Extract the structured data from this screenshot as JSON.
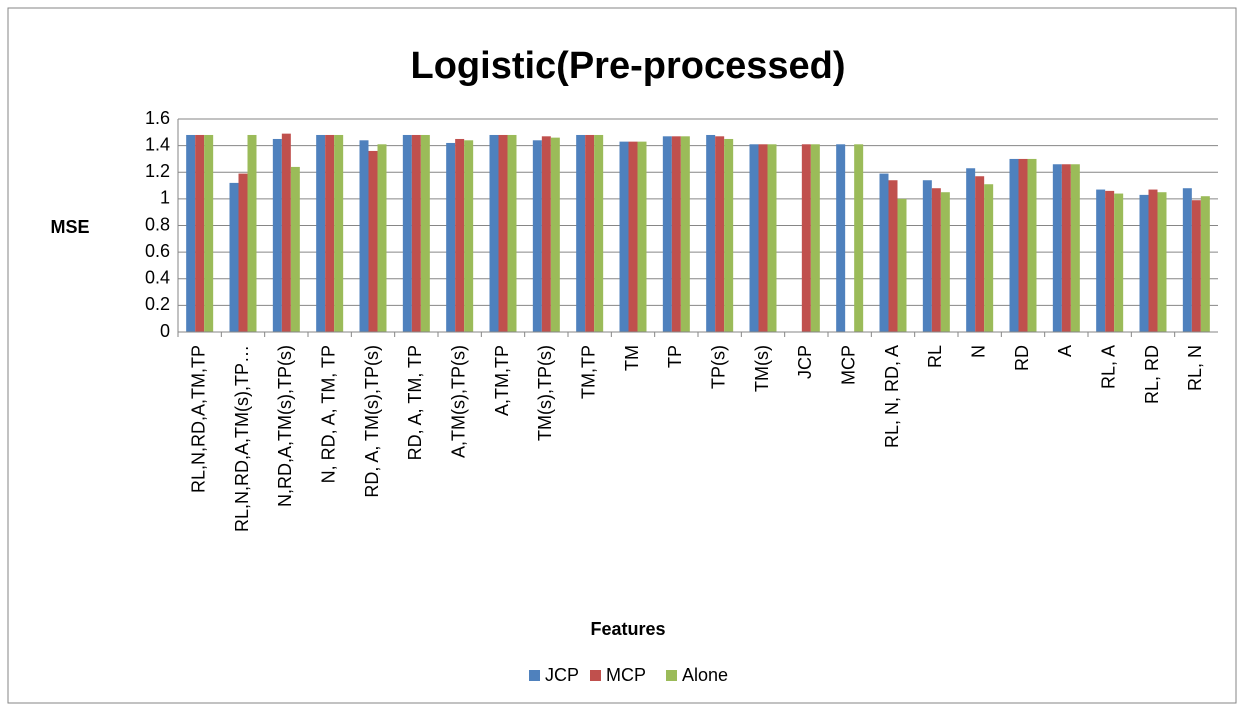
{
  "chart_data": {
    "type": "bar",
    "title": "Logistic(Pre-processed)",
    "x_label": "Features",
    "y_label": "MSE",
    "categories": [
      "RL,N,RD,A,TM,TP",
      "RL,N,RD,A,TM(s),TP…",
      "N,RD,A,TM(s),TP(s)",
      "N, RD, A, TM, TP",
      "RD, A, TM(s),TP(s)",
      "RD, A, TM, TP",
      "A,TM(s),TP(s)",
      "A,TM,TP",
      "TM(s),TP(s)",
      "TM,TP",
      "TM",
      "TP",
      "TP(s)",
      "TM(s)",
      "JCP",
      "MCP",
      "RL, N, RD, A",
      "RL",
      "N",
      "RD",
      "A",
      "RL, A",
      "RL, RD",
      "RL, N"
    ],
    "series": [
      {
        "name": "JCP",
        "color": "#4f81bd",
        "values": [
          1.48,
          1.12,
          1.45,
          1.48,
          1.44,
          1.48,
          1.42,
          1.48,
          1.44,
          1.48,
          1.43,
          1.47,
          1.48,
          1.41,
          null,
          1.41,
          1.19,
          1.14,
          1.23,
          1.3,
          1.26,
          1.07,
          1.03,
          1.08
        ]
      },
      {
        "name": "MCP",
        "color": "#c0504d",
        "values": [
          1.48,
          1.19,
          1.49,
          1.48,
          1.36,
          1.48,
          1.45,
          1.48,
          1.47,
          1.48,
          1.43,
          1.47,
          1.47,
          1.41,
          1.41,
          null,
          1.14,
          1.08,
          1.17,
          1.3,
          1.26,
          1.06,
          1.07,
          0.99
        ]
      },
      {
        "name": "Alone",
        "color": "#9bbb59",
        "values": [
          1.48,
          1.48,
          1.24,
          1.48,
          1.41,
          1.48,
          1.44,
          1.48,
          1.46,
          1.48,
          1.43,
          1.47,
          1.45,
          1.41,
          1.41,
          1.41,
          1.0,
          1.05,
          1.11,
          1.3,
          1.26,
          1.04,
          1.05,
          1.02
        ]
      }
    ],
    "ylim": [
      0,
      1.6
    ],
    "yticks": [
      0,
      0.2,
      0.4,
      0.6,
      0.8,
      1,
      1.2,
      1.4,
      1.6
    ],
    "grid": true,
    "legend": "bottom"
  }
}
